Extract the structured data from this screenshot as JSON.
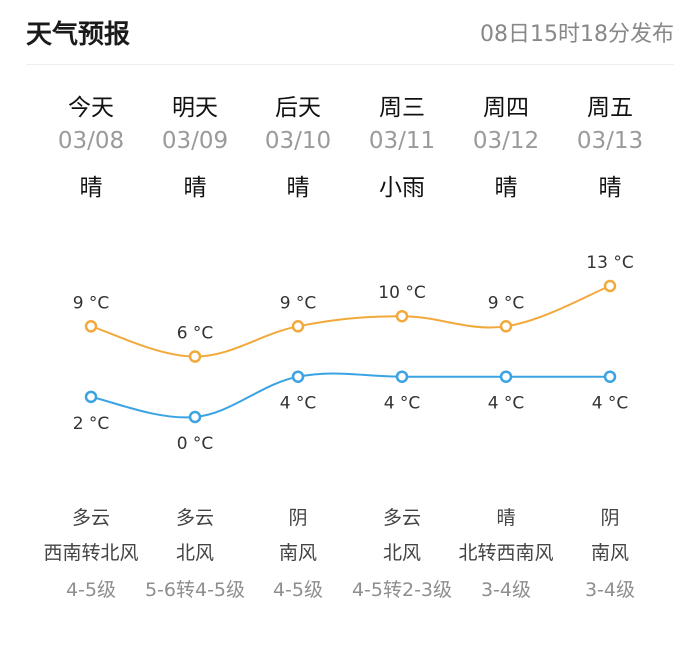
{
  "header": {
    "title": "天气预报",
    "published": "08日15时18分发布"
  },
  "colors": {
    "high_line": "#F2A93B",
    "low_line": "#3AA3E3"
  },
  "days": [
    {
      "day": "今天",
      "date": "03/08",
      "condition": "晴",
      "high": "9 °C",
      "low": "2 °C",
      "night_condition": "多云",
      "wind_dir": "西南转北风",
      "wind_level": "4-5级"
    },
    {
      "day": "明天",
      "date": "03/09",
      "condition": "晴",
      "high": "6 °C",
      "low": "0 °C",
      "night_condition": "多云",
      "wind_dir": "北风",
      "wind_level": "5-6转4-5级"
    },
    {
      "day": "后天",
      "date": "03/10",
      "condition": "晴",
      "high": "9 °C",
      "low": "4 °C",
      "night_condition": "阴",
      "wind_dir": "南风",
      "wind_level": "4-5级"
    },
    {
      "day": "周三",
      "date": "03/11",
      "condition": "小雨",
      "high": "10 °C",
      "low": "4 °C",
      "night_condition": "多云",
      "wind_dir": "北风",
      "wind_level": "4-5转2-3级"
    },
    {
      "day": "周四",
      "date": "03/12",
      "condition": "晴",
      "high": "9 °C",
      "low": "4 °C",
      "night_condition": "晴",
      "wind_dir": "北转西南风",
      "wind_level": "3-4级"
    },
    {
      "day": "周五",
      "date": "03/13",
      "condition": "晴",
      "high": "13 °C",
      "low": "4 °C",
      "night_condition": "阴",
      "wind_dir": "南风",
      "wind_level": "3-4级"
    }
  ],
  "chart_data": {
    "type": "line",
    "categories": [
      "03/08",
      "03/09",
      "03/10",
      "03/11",
      "03/12",
      "03/13"
    ],
    "series": [
      {
        "values": [
          9,
          6,
          9,
          10,
          9,
          13
        ]
      },
      {
        "values": [
          2,
          0,
          4,
          4,
          4,
          4
        ]
      }
    ]
  }
}
